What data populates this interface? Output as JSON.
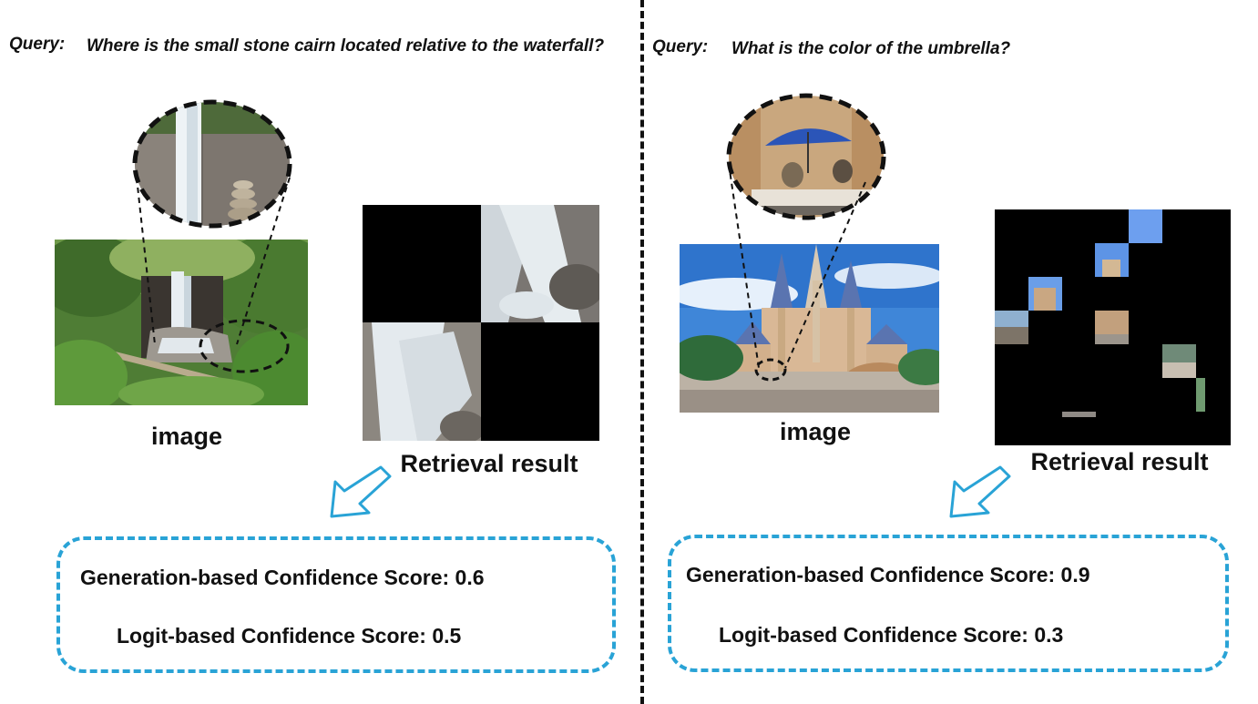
{
  "left": {
    "query_label": "Query:",
    "query_text": "Where is the small stone cairn located relative to the waterfall?",
    "image_caption": "image",
    "retrieval_caption": "Retrieval result",
    "gen_label": "Generation-based Confidence Score:",
    "gen_value": "0.6",
    "logit_label": "Logit-based Confidence Score:",
    "logit_value": "0.5"
  },
  "right": {
    "query_label": "Query:",
    "query_text": "What is the color of the umbrella?",
    "image_caption": "image",
    "retrieval_caption": "Retrieval result",
    "gen_label": "Generation-based Confidence Score:",
    "gen_value": "0.9",
    "logit_label": "Logit-based Confidence Score:",
    "logit_value": "0.3"
  },
  "colors": {
    "accent_dashed_box": "#29a3d6",
    "arrow_stroke": "#29a3d6",
    "divider": "#111111"
  },
  "icons": {
    "pointer_arrow": "outlined-down-left-arrow"
  }
}
